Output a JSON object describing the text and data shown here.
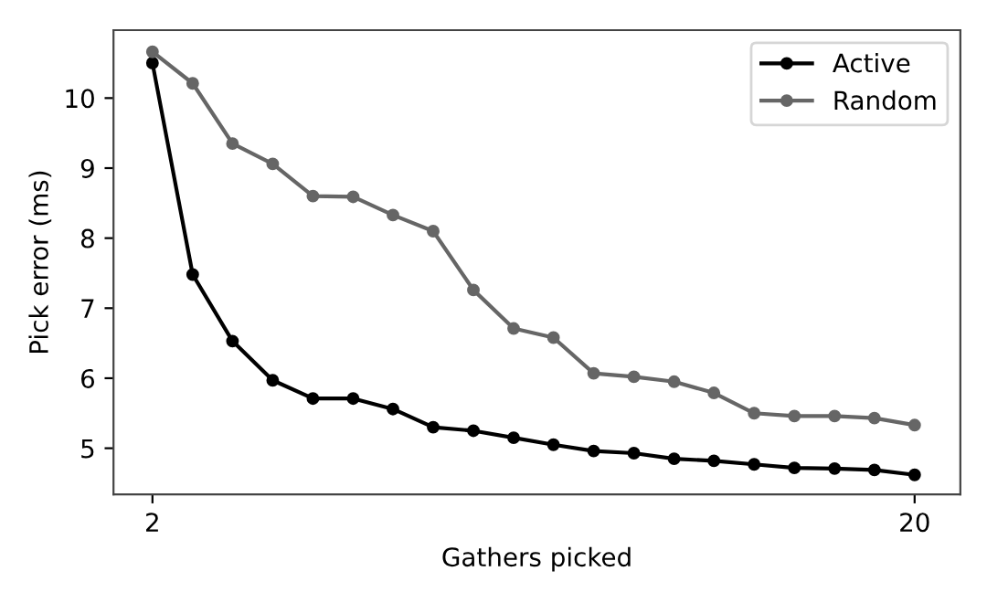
{
  "chart_data": {
    "type": "line",
    "xlabel": "Gathers picked",
    "ylabel": "Pick error (ms)",
    "x": [
      2,
      2.95,
      3.89,
      4.84,
      5.79,
      6.74,
      7.68,
      8.63,
      9.58,
      10.53,
      11.47,
      12.42,
      13.37,
      14.32,
      15.26,
      16.21,
      17.16,
      18.11,
      19.05,
      20
    ],
    "series": [
      {
        "name": "Active",
        "color": "#000000",
        "values": [
          10.5,
          7.48,
          6.53,
          5.97,
          5.71,
          5.71,
          5.56,
          5.3,
          5.25,
          5.15,
          5.05,
          4.96,
          4.93,
          4.85,
          4.82,
          4.77,
          4.72,
          4.71,
          4.69,
          4.62
        ]
      },
      {
        "name": "Random",
        "color": "#666666",
        "values": [
          10.66,
          10.21,
          9.35,
          9.06,
          8.6,
          8.59,
          8.33,
          8.1,
          7.26,
          6.71,
          6.58,
          6.07,
          6.02,
          5.95,
          5.79,
          5.5,
          5.46,
          5.46,
          5.43,
          5.33
        ]
      }
    ],
    "xlim": [
      1.08,
      21.08
    ],
    "xticks": [
      2,
      20
    ],
    "ylim": [
      4.34,
      10.97
    ],
    "yticks": [
      5,
      6,
      7,
      8,
      9,
      10
    ],
    "marker": "circle",
    "line_style": "solid",
    "legend": "top right",
    "grid": false
  }
}
